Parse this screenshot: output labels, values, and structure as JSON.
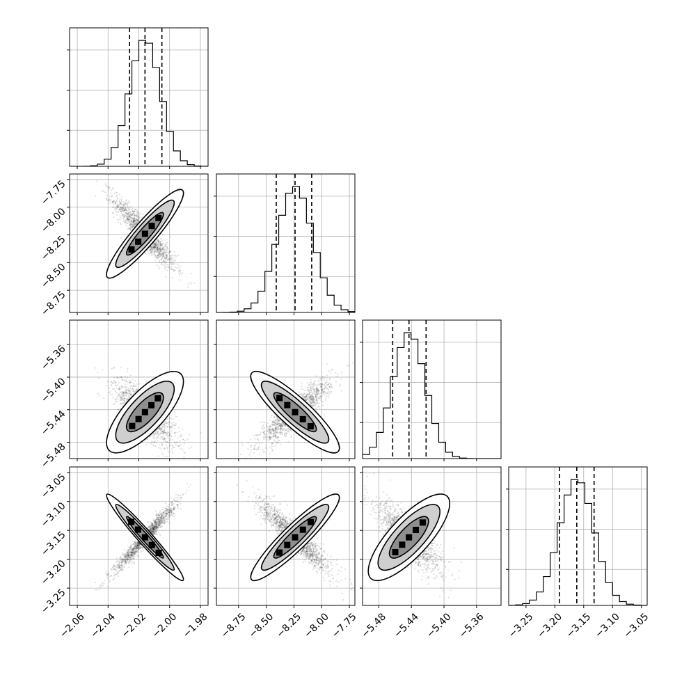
{
  "chart_data": {
    "type": "corner",
    "parameters": [
      {
        "index": 0,
        "mean": -2.016,
        "std": 0.01,
        "range": [
          -2.065,
          -1.975
        ],
        "ticks": [
          -2.06,
          -2.04,
          -2.02,
          -2.0,
          -1.98
        ],
        "tick_labels": [
          "−2.06",
          "−2.04",
          "−2.02",
          "−2.00",
          "−1.98"
        ],
        "quantiles": [
          -2.026,
          -2.016,
          -2.005
        ]
      },
      {
        "index": 1,
        "mean": -8.24,
        "std": 0.16,
        "range": [
          -8.95,
          -7.7
        ],
        "ticks": [
          -8.75,
          -8.5,
          -8.25,
          -8.0,
          -7.75
        ],
        "tick_labels": [
          "−8.75",
          "−8.50",
          "−8.25",
          "−8.00",
          "−7.75"
        ],
        "quantiles": [
          -8.41,
          -8.24,
          -8.09
        ]
      },
      {
        "index": 2,
        "mean": -5.443,
        "std": 0.02,
        "range": [
          -5.5,
          -5.33
        ],
        "ticks": [
          -5.48,
          -5.44,
          -5.4,
          -5.36
        ],
        "tick_labels": [
          "−5.48",
          "−5.44",
          "−5.40",
          "−5.36"
        ],
        "quantiles": [
          -5.463,
          -5.443,
          -5.422
        ]
      },
      {
        "index": 3,
        "mean": -3.162,
        "std": 0.03,
        "range": [
          -3.28,
          -3.04
        ],
        "ticks": [
          -3.25,
          -3.2,
          -3.15,
          -3.1,
          -3.05
        ],
        "tick_labels": [
          "−3.25",
          "−3.20",
          "−3.15",
          "−3.10",
          "−3.05"
        ],
        "quantiles": [
          -3.192,
          -3.162,
          -3.132
        ]
      }
    ],
    "correlations": {
      "1-0": -0.92,
      "2-0": -0.75,
      "2-1": 0.88,
      "3-0": 0.97,
      "3-1": -0.92,
      "3-2": -0.78
    },
    "hist_bins": 20,
    "grid": true,
    "contour_levels": [
      "1-sigma",
      "2-sigma",
      "3-sigma"
    ],
    "colors": {
      "line": "#000000",
      "points": "#000000",
      "grid": "#b0b0b0"
    }
  }
}
